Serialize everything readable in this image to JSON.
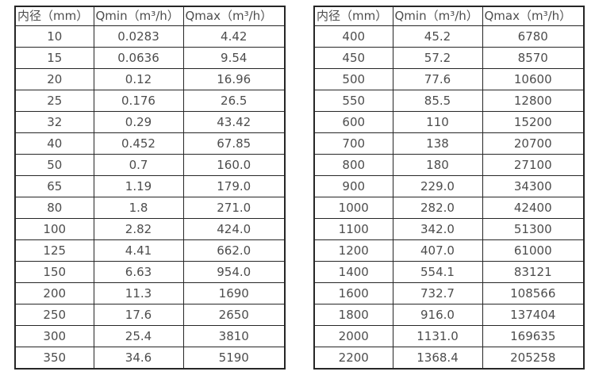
{
  "tables": [
    {
      "name": "small-diameter-flow-table",
      "headers": [
        "内径（mm）",
        "Qmin（m³/h）",
        "Qmax（m³/h）"
      ],
      "rows": [
        [
          "10",
          "0.0283",
          "4.42"
        ],
        [
          "15",
          "0.0636",
          "9.54"
        ],
        [
          "20",
          "0.12",
          "16.96"
        ],
        [
          "25",
          "0.176",
          "26.5"
        ],
        [
          "32",
          "0.29",
          "43.42"
        ],
        [
          "40",
          "0.452",
          "67.85"
        ],
        [
          "50",
          "0.7",
          "160.0"
        ],
        [
          "65",
          "1.19",
          "179.0"
        ],
        [
          "80",
          "1.8",
          "271.0"
        ],
        [
          "100",
          "2.82",
          "424.0"
        ],
        [
          "125",
          "4.41",
          "662.0"
        ],
        [
          "150",
          "6.63",
          "954.0"
        ],
        [
          "200",
          "11.3",
          "1690"
        ],
        [
          "250",
          "17.6",
          "2650"
        ],
        [
          "300",
          "25.4",
          "3810"
        ],
        [
          "350",
          "34.6",
          "5190"
        ]
      ]
    },
    {
      "name": "large-diameter-flow-table",
      "headers": [
        "内径（mm）",
        "Qmin（m³/h）",
        "Qmax（m³/h）"
      ],
      "rows": [
        [
          "400",
          "45.2",
          "6780"
        ],
        [
          "450",
          "57.2",
          "8570"
        ],
        [
          "500",
          "77.6",
          "10600"
        ],
        [
          "550",
          "85.5",
          "12800"
        ],
        [
          "600",
          "110",
          "15200"
        ],
        [
          "700",
          "138",
          "20700"
        ],
        [
          "800",
          "180",
          "27100"
        ],
        [
          "900",
          "229.0",
          "34300"
        ],
        [
          "1000",
          "282.0",
          "42400"
        ],
        [
          "1100",
          "342.0",
          "51300"
        ],
        [
          "1200",
          "407.0",
          "61000"
        ],
        [
          "1400",
          "554.1",
          "83121"
        ],
        [
          "1600",
          "732.7",
          "108566"
        ],
        [
          "1800",
          "916.0",
          "137404"
        ],
        [
          "2000",
          "1131.0",
          "169635"
        ],
        [
          "2200",
          "1368.4",
          "205258"
        ]
      ]
    }
  ],
  "colors": {
    "text": "#4d4d4d",
    "border": "#262626",
    "background": "#ffffff"
  }
}
